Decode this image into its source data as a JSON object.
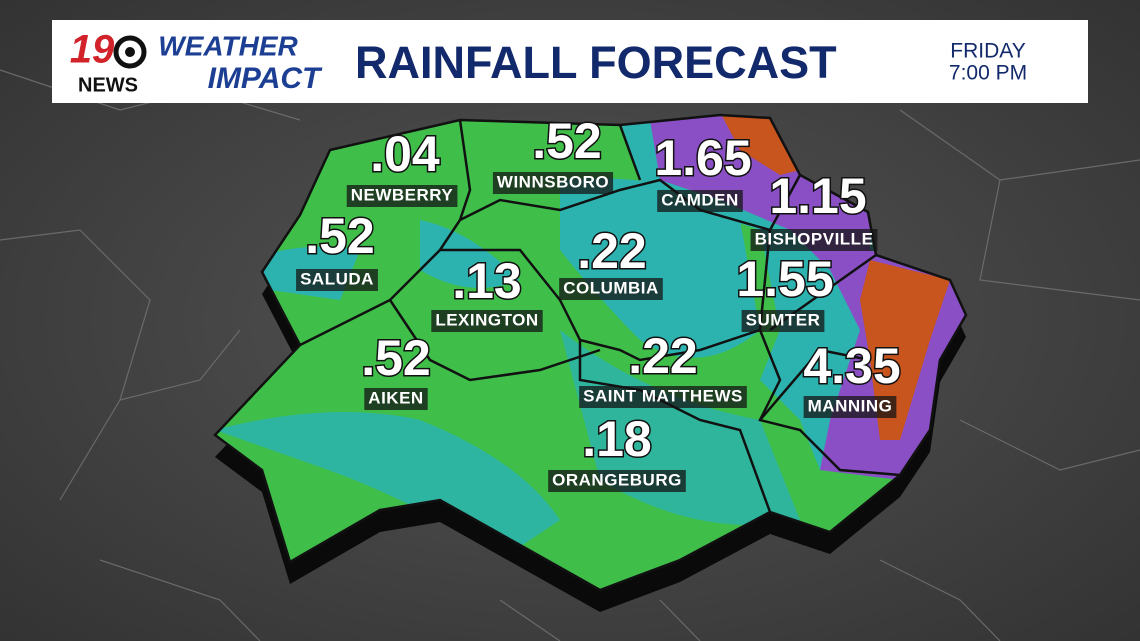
{
  "header": {
    "logo_number": "19",
    "logo_network": "NEWS",
    "brand_top": "WEATHER",
    "brand_bottom": "IMPACT",
    "title": "RAINFALL FORECAST",
    "day": "FRIDAY",
    "time": "7:00 PM"
  },
  "locations": [
    {
      "value": ".04",
      "name": "NEWBERRY"
    },
    {
      "value": ".52",
      "name": "WINNSBORO"
    },
    {
      "value": "1.65",
      "name": "CAMDEN"
    },
    {
      "value": "1.15",
      "name": "BISHOPVILLE"
    },
    {
      "value": ".52",
      "name": "SALUDA"
    },
    {
      "value": ".22",
      "name": "COLUMBIA"
    },
    {
      "value": ".13",
      "name": "LEXINGTON"
    },
    {
      "value": "1.55",
      "name": "SUMTER"
    },
    {
      "value": ".52",
      "name": "AIKEN"
    },
    {
      "value": ".22",
      "name": "SAINT MATTHEWS"
    },
    {
      "value": "4.35",
      "name": "MANNING"
    },
    {
      "value": ".18",
      "name": "ORANGEBURG"
    }
  ]
}
